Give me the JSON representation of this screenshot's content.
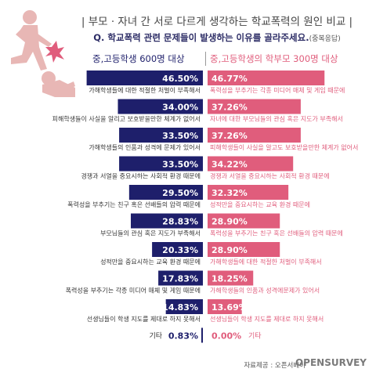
{
  "header": {
    "title": "| 부모 · 자녀 간 서로 다르게 생각하는 학교폭력의 원인 비교 |",
    "question": "Q. 학교폭력 관련 문제들이 발생하는 이유를 골라주세요.",
    "question_note": "(중복응답)"
  },
  "columns": {
    "left": "중,고등학생 600명 대상",
    "right": "중,고등학생의 학부모 300명 대상"
  },
  "colors": {
    "left": "#1e1f6b",
    "right": "#e05d7c"
  },
  "chart_data": {
    "type": "bar",
    "series": [
      {
        "name": "중,고등학생 600명 대상",
        "items": [
          {
            "label": "가해학생들에 대한 적절한 처벌이 부족해서",
            "value": 46.5,
            "display": "46.50%"
          },
          {
            "label": "피해학생들이 사실을 알리고 보호받을만한 체계가 없어서",
            "value": 34.0,
            "display": "34.00%"
          },
          {
            "label": "가해학생들의 인품과 성격에 문제가 있어서",
            "value": 33.5,
            "display": "33.50%"
          },
          {
            "label": "경쟁과 서열을 중요시하는 사회적 환경 때문에",
            "value": 33.5,
            "display": "33.50%"
          },
          {
            "label": "폭력성을 부추기는 친구 혹은 선배들의 압력 때문에",
            "value": 29.5,
            "display": "29.50%"
          },
          {
            "label": "부모님들의 관심 혹은 지도가 부족해서",
            "value": 28.83,
            "display": "28.83%"
          },
          {
            "label": "성적만을 중요시하는 교육 환경 때문에",
            "value": 20.33,
            "display": "20.33%"
          },
          {
            "label": "폭력성을 부추기는 각종 미디어 매체 및 게임 때문에",
            "value": 17.83,
            "display": "17.83%"
          },
          {
            "label": "선생님들이 학생 지도를 제대로 하지 못해서",
            "value": 14.83,
            "display": "14.83%"
          },
          {
            "label": "기타",
            "value": 0.83,
            "display": "0.83%"
          }
        ]
      },
      {
        "name": "중,고등학생의 학부모 300명 대상",
        "items": [
          {
            "label": "폭력성을 부추기는 각종 미디어 매체 및 게임 때문에",
            "value": 46.77,
            "display": "46.77%"
          },
          {
            "label": "자녀에 대한 부모님들의 관심 혹은 지도가 부족해서",
            "value": 37.26,
            "display": "37.26%"
          },
          {
            "label": "피해학생들이 사실을 알고도 보호받을만한 체계가 없어서",
            "value": 37.26,
            "display": "37.26%"
          },
          {
            "label": "경쟁과 서열을 중요시하는 사회적 환경 때문에",
            "value": 34.22,
            "display": "34.22%"
          },
          {
            "label": "성적만을 중요시하는 교육 환경 때문에",
            "value": 32.32,
            "display": "32.32%"
          },
          {
            "label": "폭력성을 부추기는 친구 혹은 선배들의 압력 때문에",
            "value": 28.9,
            "display": "28.90%"
          },
          {
            "label": "가해학생들에 대한 적절한 처벌이 부족해서",
            "value": 28.9,
            "display": "28.90%"
          },
          {
            "label": "가해학생들의 인품과 성격에문제가 있어서",
            "value": 18.25,
            "display": "18.25%"
          },
          {
            "label": "선생님들이 학생 지도를 제대로 하지 못해서",
            "value": 13.69,
            "display": "13.69%"
          },
          {
            "label": "기타",
            "value": 0.0,
            "display": "0.00%"
          }
        ]
      }
    ]
  },
  "footer": {
    "source": "자료제공 : 오픈서베이",
    "brand": "OPENSURVEY"
  }
}
